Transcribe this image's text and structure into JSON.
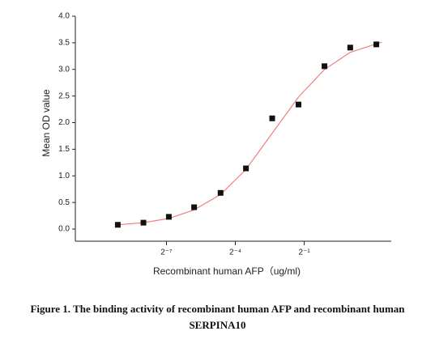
{
  "chart_data": {
    "type": "scatter",
    "caption": "Figure 1. The binding activity of recombinant human AFP and recombinant human SERPINA10",
    "xlabel": "Recombinant human  AFP（ug/ml)",
    "ylabel": "Mean OD value",
    "xscale": "log2",
    "xlim": [
      0.0005,
      6.9
    ],
    "xticks": [
      {
        "value": 0.0078125,
        "label": "2⁻⁷"
      },
      {
        "value": 0.0625,
        "label": "2⁻⁴"
      },
      {
        "value": 0.5,
        "label": "2⁻¹"
      }
    ],
    "ylim": [
      0,
      4
    ],
    "yticks": [
      {
        "value": 0,
        "label": "0.0"
      },
      0.5,
      {
        "value": 1,
        "label": "1.0"
      },
      1.5,
      {
        "value": 2,
        "label": "2.0"
      },
      2.5,
      {
        "value": 3,
        "label": "3.0"
      },
      3.5,
      {
        "value": 4,
        "label": "4.0"
      }
    ],
    "marker_color": "#111111",
    "x": [
      0.0018,
      0.0039,
      0.0084,
      0.018,
      0.04,
      0.086,
      0.19,
      0.42,
      0.92,
      2.0,
      4.4
    ],
    "values": [
      0.08,
      0.12,
      0.23,
      0.41,
      0.68,
      1.14,
      2.08,
      2.34,
      3.06,
      3.41,
      3.47
    ],
    "fit_curve": {
      "color": "#f08080",
      "x": [
        0.0018,
        0.0039,
        0.0084,
        0.018,
        0.04,
        0.086,
        0.19,
        0.42,
        0.92,
        2.0,
        4.4,
        5.2
      ],
      "values": [
        0.08,
        0.12,
        0.2,
        0.36,
        0.65,
        1.12,
        1.8,
        2.48,
        3.0,
        3.32,
        3.48,
        3.51
      ]
    }
  }
}
